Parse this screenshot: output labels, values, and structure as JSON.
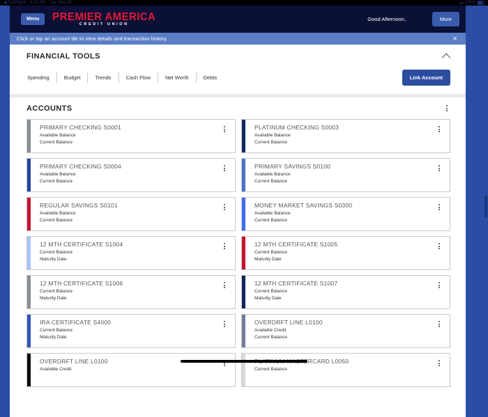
{
  "status_bar": {
    "back_link": "◀ TestFlight",
    "time": "3:18 PM",
    "date": "Tue May 25",
    "battery_percent": "100%"
  },
  "header": {
    "menu_label": "Menu",
    "brand_line1": "PREMIER AMERICA",
    "brand_line2": "CREDIT UNION",
    "greeting": "Good Afternoon,",
    "more_label": "More"
  },
  "banner": {
    "message": "Click or tap an account tile to view details and transaction history.",
    "close_glyph": "✕"
  },
  "financial_tools": {
    "title": "FINANCIAL TOOLS",
    "tabs": [
      "Spending",
      "Budget",
      "Trends",
      "Cash Flow",
      "Net Worth",
      "Debts"
    ],
    "link_account_label": "Link Account"
  },
  "accounts": {
    "title": "ACCOUNTS",
    "tiles": [
      {
        "name": "PRIMARY CHECKING S0001",
        "labels": [
          "Available Balance",
          "Current Balance"
        ],
        "accent": "#8a8f96"
      },
      {
        "name": "PLATINUM CHECKING S0003",
        "labels": [
          "Available Balance",
          "Current Balance"
        ],
        "accent": "#172a5e"
      },
      {
        "name": "PRIMARY CHECKING S0004",
        "labels": [
          "Available Balance",
          "Current Balance"
        ],
        "accent": "#27429b"
      },
      {
        "name": "PRIMARY SAVINGS S0100",
        "labels": [
          "Available Balance",
          "Current Balance"
        ],
        "accent": "#4a72c8"
      },
      {
        "name": "REGULAR SAVINGS S0101",
        "labels": [
          "Available Balance",
          "Current Balance"
        ],
        "accent": "#c31432"
      },
      {
        "name": "MONEY MARKET SAVINGS S0300",
        "labels": [
          "Available Balance",
          "Current Balance"
        ],
        "accent": "#3f6cf0"
      },
      {
        "name": "12 MTH CERTIFICATE S1004",
        "labels": [
          "Current Balance",
          "Maturity Date"
        ],
        "accent": "#a9c4f7"
      },
      {
        "name": "12 MTH CERTIFICATE S1005",
        "labels": [
          "Current Balance",
          "Maturity Date"
        ],
        "accent": "#c31432"
      },
      {
        "name": "12 MTH CERTIFICATE S1006",
        "labels": [
          "Current Balance",
          "Maturity Date"
        ],
        "accent": "#8a8f96"
      },
      {
        "name": "12 MTH CERTIFICATE S1007",
        "labels": [
          "Current Balance",
          "Maturity Date"
        ],
        "accent": "#14255c"
      },
      {
        "name": "IRA CERTIFICATE S4000",
        "labels": [
          "Current Balance",
          "Maturity Date"
        ],
        "accent": "#3058b8"
      },
      {
        "name": "OVERDRFT LINE L0100",
        "labels": [
          "Available Credit",
          "Current Balance"
        ],
        "accent": "#737e99"
      },
      {
        "name": "OVERDRFT LINE L0100",
        "labels": [
          "Available Credit"
        ],
        "accent": "#0d0d0d"
      },
      {
        "name": "PLATINUM MASTERCARD L0050",
        "labels": [
          "Current Balance"
        ],
        "accent": "#d9d9d9"
      }
    ]
  },
  "colors": {
    "page_background": "#2b4da6",
    "header_background": "#0a1036",
    "banner_background": "#5b7ec6",
    "brand_red": "#e31937",
    "button_blue": "#3a5cad",
    "primary_button_blue": "#2b4da0"
  }
}
